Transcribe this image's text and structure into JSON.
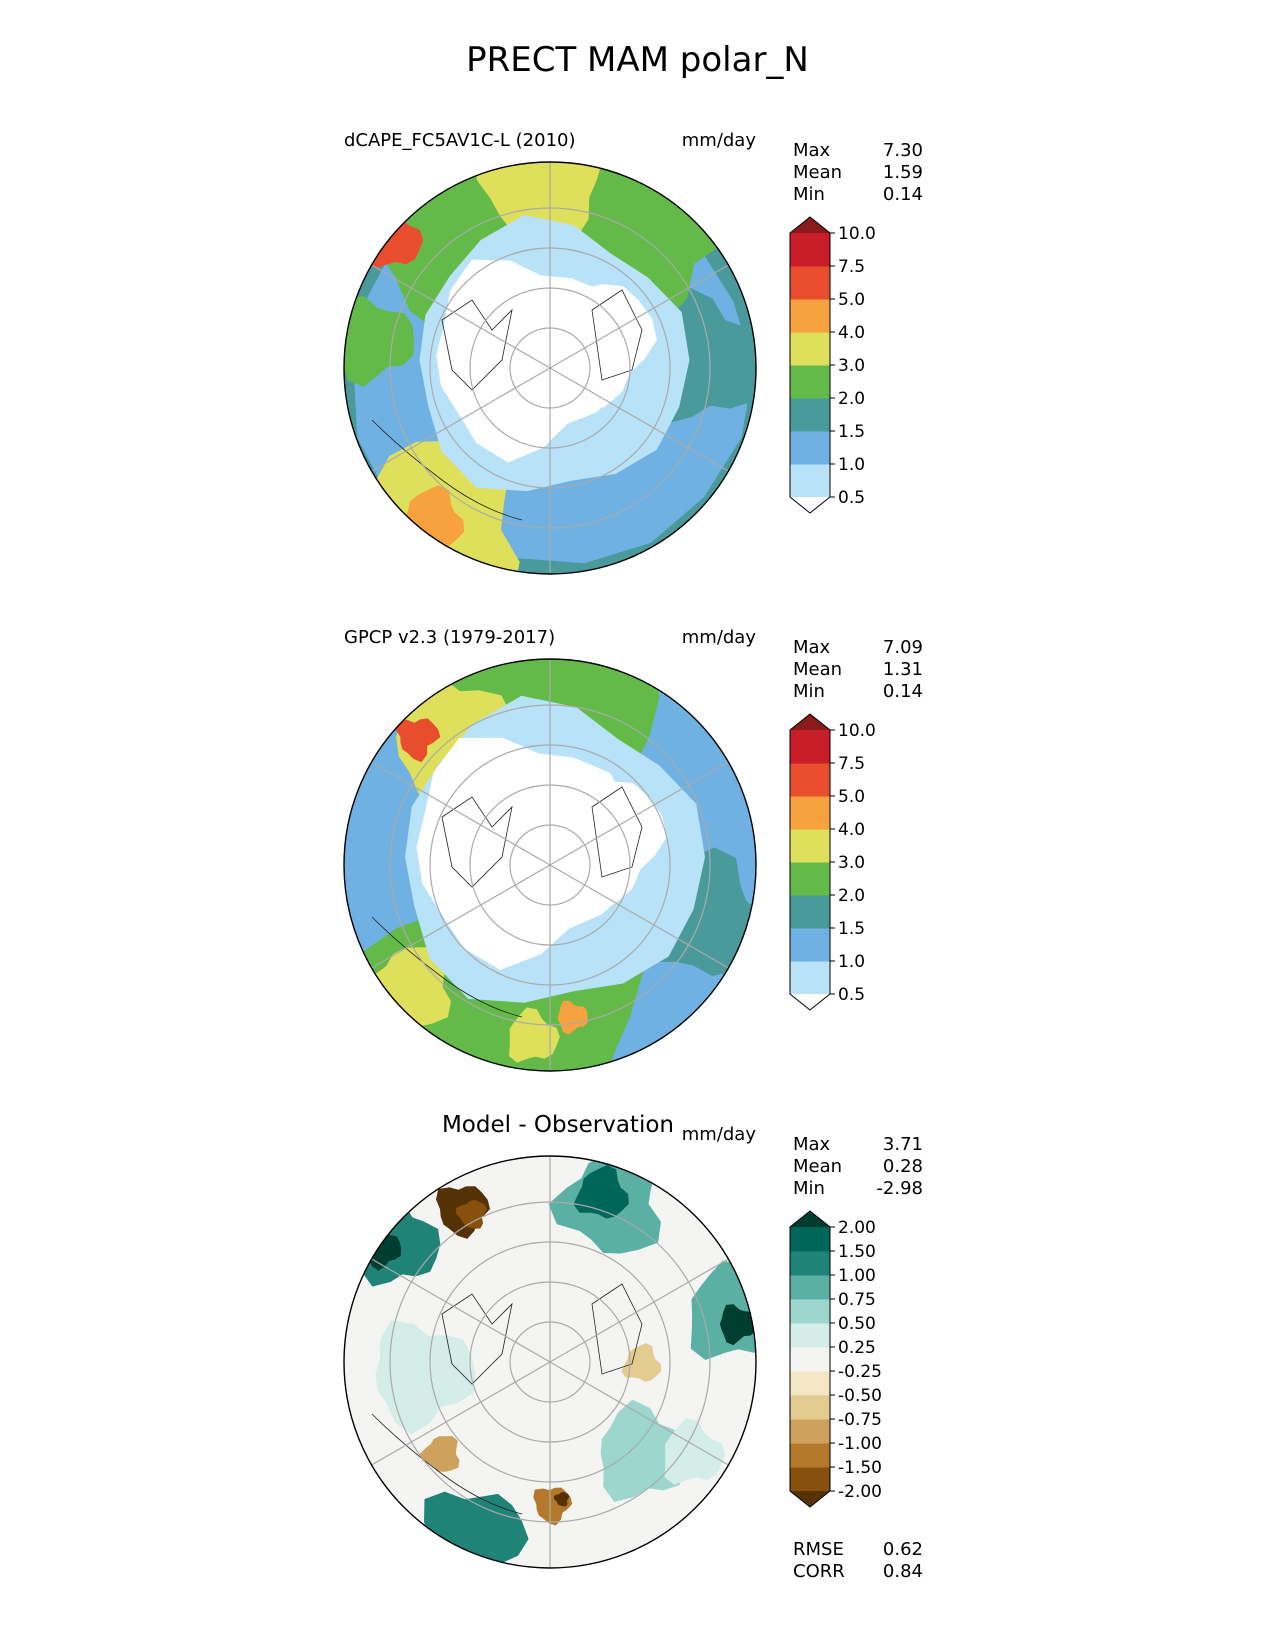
{
  "title": "PRECT MAM polar_N",
  "units": "mm/day",
  "panels": [
    {
      "id": "test",
      "left_title": "dCAPE_FC5AV1C-L (2010)",
      "center_title": "",
      "stats": {
        "max_label": "Max",
        "max": "7.30",
        "mean_label": "Mean",
        "mean": "1.59",
        "min_label": "Min",
        "min": "0.14"
      },
      "colorbar": {
        "levels": [
          "0.5",
          "1.0",
          "1.5",
          "2.0",
          "3.0",
          "4.0",
          "5.0",
          "7.5",
          "10.0"
        ],
        "colors": [
          "#ffffff",
          "#b7e2f8",
          "#6fb1e2",
          "#4a9a9b",
          "#63ba48",
          "#dee05b",
          "#f7a13f",
          "#e84e2d",
          "#c81e27",
          "#8b1a1c"
        ]
      }
    },
    {
      "id": "reference",
      "left_title": "GPCP v2.3 (1979-2017)",
      "center_title": "",
      "stats": {
        "max_label": "Max",
        "max": "7.09",
        "mean_label": "Mean",
        "mean": "1.31",
        "min_label": "Min",
        "min": "0.14"
      },
      "colorbar": {
        "levels": [
          "0.5",
          "1.0",
          "1.5",
          "2.0",
          "3.0",
          "4.0",
          "5.0",
          "7.5",
          "10.0"
        ],
        "colors": [
          "#ffffff",
          "#b7e2f8",
          "#6fb1e2",
          "#4a9a9b",
          "#63ba48",
          "#dee05b",
          "#f7a13f",
          "#e84e2d",
          "#c81e27",
          "#8b1a1c"
        ]
      }
    },
    {
      "id": "difference",
      "left_title": "",
      "center_title": "Model - Observation",
      "stats": {
        "max_label": "Max",
        "max": "3.71",
        "mean_label": "Mean",
        "mean": "0.28",
        "min_label": "Min",
        "min": "-2.98"
      },
      "colorbar": {
        "levels": [
          "-2.00",
          "-1.50",
          "-1.00",
          "-0.75",
          "-0.50",
          "-0.25",
          "0.25",
          "0.50",
          "0.75",
          "1.00",
          "1.50",
          "2.00"
        ],
        "colors": [
          "#553206",
          "#87500c",
          "#b4782b",
          "#cea15c",
          "#e4cb90",
          "#f4e7c4",
          "#f4f4f2",
          "#d4ede9",
          "#9dd6cd",
          "#5ab0a2",
          "#1f8378",
          "#00665a",
          "#003d31"
        ]
      },
      "metrics": {
        "rmse_label": "RMSE",
        "rmse": "0.62",
        "corr_label": "CORR",
        "corr": "0.84"
      }
    }
  ]
}
